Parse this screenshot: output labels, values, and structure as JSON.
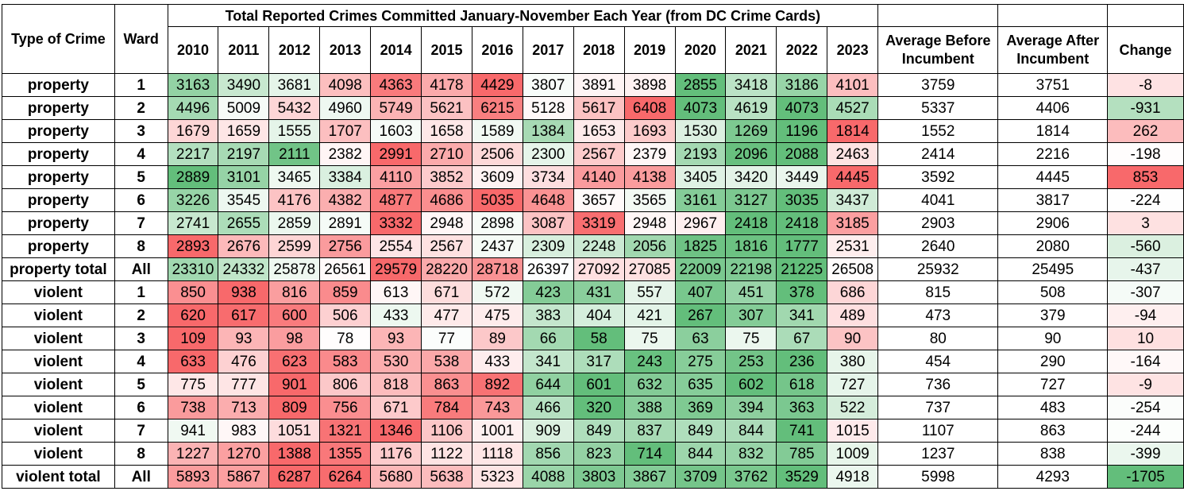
{
  "title": "Total Reported Crimes Committed January-November Each Year (from DC Crime Cards)",
  "headers": {
    "type": "Type of Crime",
    "ward": "Ward",
    "years": [
      "2010",
      "2011",
      "2012",
      "2013",
      "2014",
      "2015",
      "2016",
      "2017",
      "2018",
      "2019",
      "2020",
      "2021",
      "2022",
      "2023"
    ],
    "avg_before": "Average Before Incumbent",
    "avg_after": "Average After Incumbent",
    "change": "Change"
  },
  "rows": [
    {
      "type": "property",
      "ward": "1",
      "values": [
        3163,
        3490,
        3681,
        4098,
        4363,
        4178,
        4429,
        3807,
        3891,
        3898,
        2855,
        3418,
        3186,
        4101
      ],
      "avg_before": 3759,
      "avg_after": 3751,
      "change": -8
    },
    {
      "type": "property",
      "ward": "2",
      "values": [
        4496,
        5009,
        5432,
        4960,
        5749,
        5621,
        6215,
        5128,
        5617,
        6408,
        4073,
        4619,
        4073,
        4527
      ],
      "avg_before": 5337,
      "avg_after": 4406,
      "change": -931
    },
    {
      "type": "property",
      "ward": "3",
      "values": [
        1679,
        1659,
        1555,
        1707,
        1603,
        1658,
        1589,
        1384,
        1653,
        1693,
        1530,
        1269,
        1196,
        1814
      ],
      "avg_before": 1552,
      "avg_after": 1814,
      "change": 262
    },
    {
      "type": "property",
      "ward": "4",
      "values": [
        2217,
        2197,
        2111,
        2382,
        2991,
        2710,
        2506,
        2300,
        2567,
        2379,
        2193,
        2096,
        2088,
        2463
      ],
      "avg_before": 2414,
      "avg_after": 2216,
      "change": -198
    },
    {
      "type": "property",
      "ward": "5",
      "values": [
        2889,
        3101,
        3465,
        3384,
        4110,
        3852,
        3609,
        3734,
        4140,
        4138,
        3405,
        3420,
        3449,
        4445
      ],
      "avg_before": 3592,
      "avg_after": 4445,
      "change": 853
    },
    {
      "type": "property",
      "ward": "6",
      "values": [
        3226,
        3545,
        4176,
        4382,
        4877,
        4686,
        5035,
        4648,
        3657,
        3565,
        3161,
        3127,
        3035,
        3437
      ],
      "avg_before": 4041,
      "avg_after": 3817,
      "change": -224
    },
    {
      "type": "property",
      "ward": "7",
      "values": [
        2741,
        2655,
        2859,
        2891,
        3332,
        2948,
        2898,
        3087,
        3319,
        2948,
        2967,
        2418,
        2418,
        3185
      ],
      "avg_before": 2903,
      "avg_after": 2906,
      "change": 3
    },
    {
      "type": "property",
      "ward": "8",
      "values": [
        2893,
        2676,
        2599,
        2756,
        2554,
        2567,
        2437,
        2309,
        2248,
        2056,
        1825,
        1816,
        1777,
        2531
      ],
      "avg_before": 2640,
      "avg_after": 2080,
      "change": -560
    },
    {
      "type": "property total",
      "ward": "All",
      "values": [
        23310,
        24332,
        25878,
        26561,
        29579,
        28220,
        28718,
        26397,
        27092,
        27085,
        22009,
        22198,
        21225,
        26508
      ],
      "avg_before": 25932,
      "avg_after": 25495,
      "change": -437
    },
    {
      "type": "violent",
      "ward": "1",
      "values": [
        850,
        938,
        816,
        859,
        613,
        671,
        572,
        423,
        431,
        557,
        407,
        451,
        378,
        686
      ],
      "avg_before": 815,
      "avg_after": 508,
      "change": -307
    },
    {
      "type": "violent",
      "ward": "2",
      "values": [
        620,
        617,
        600,
        506,
        433,
        477,
        475,
        383,
        404,
        421,
        267,
        307,
        341,
        489
      ],
      "avg_before": 473,
      "avg_after": 379,
      "change": -94
    },
    {
      "type": "violent",
      "ward": "3",
      "values": [
        109,
        93,
        98,
        78,
        93,
        77,
        89,
        66,
        58,
        75,
        63,
        75,
        67,
        90
      ],
      "avg_before": 80,
      "avg_after": 90,
      "change": 10
    },
    {
      "type": "violent",
      "ward": "4",
      "values": [
        633,
        476,
        623,
        583,
        530,
        538,
        433,
        341,
        317,
        243,
        275,
        253,
        236,
        380
      ],
      "avg_before": 454,
      "avg_after": 290,
      "change": -164
    },
    {
      "type": "violent",
      "ward": "5",
      "values": [
        775,
        777,
        901,
        806,
        818,
        863,
        892,
        644,
        601,
        632,
        635,
        602,
        618,
        727
      ],
      "avg_before": 736,
      "avg_after": 727,
      "change": -9
    },
    {
      "type": "violent",
      "ward": "6",
      "values": [
        738,
        713,
        809,
        756,
        671,
        784,
        743,
        466,
        320,
        388,
        369,
        394,
        363,
        522
      ],
      "avg_before": 737,
      "avg_after": 483,
      "change": -254
    },
    {
      "type": "violent",
      "ward": "7",
      "values": [
        941,
        983,
        1051,
        1321,
        1346,
        1106,
        1001,
        909,
        849,
        837,
        849,
        844,
        741,
        1015
      ],
      "avg_before": 1107,
      "avg_after": 863,
      "change": -244
    },
    {
      "type": "violent",
      "ward": "8",
      "values": [
        1227,
        1270,
        1388,
        1355,
        1176,
        1122,
        1118,
        856,
        823,
        714,
        844,
        832,
        785,
        1009
      ],
      "avg_before": 1237,
      "avg_after": 838,
      "change": -399
    },
    {
      "type": "violent total",
      "ward": "All",
      "values": [
        5893,
        5867,
        6287,
        6264,
        5680,
        5638,
        5323,
        4088,
        3803,
        3867,
        3709,
        3762,
        3529,
        4918
      ],
      "avg_before": 5998,
      "avg_after": 4293,
      "change": -1705
    }
  ],
  "colors": {
    "high": "#f8696b",
    "mid": "#ffffff",
    "low": "#63be7b",
    "grid": "#000000",
    "background": "#ffffff"
  }
}
